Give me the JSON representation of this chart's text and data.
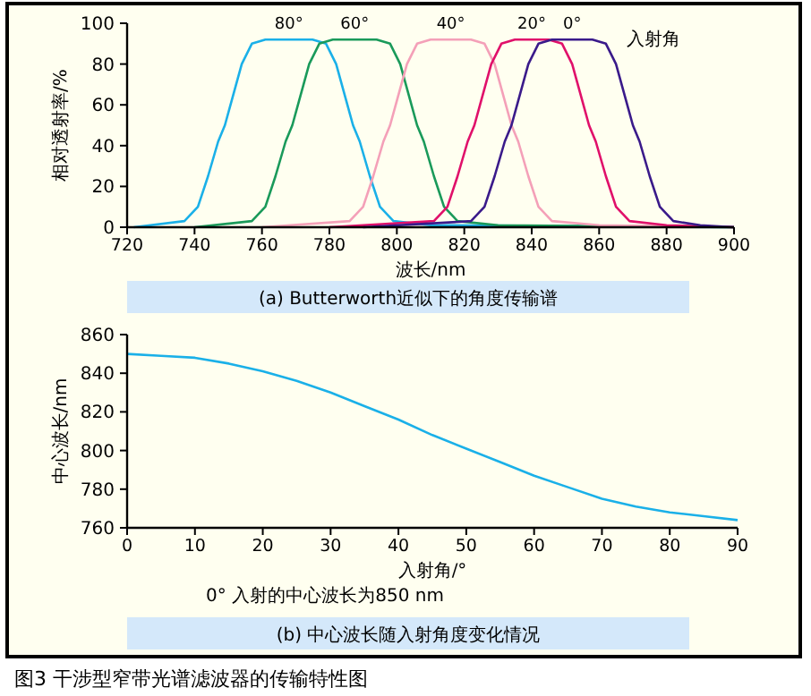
{
  "chart_data": [
    {
      "type": "line",
      "title": "(a) Butterworth近似下的角度传输谱",
      "xlabel": "波长/nm",
      "ylabel": "相对透射率/%",
      "xlim": [
        720,
        900
      ],
      "xticks": [
        720,
        740,
        760,
        780,
        800,
        820,
        840,
        860,
        880,
        900
      ],
      "ylim": [
        0,
        100
      ],
      "yticks": [
        0,
        20,
        40,
        60,
        80,
        100
      ],
      "annotations": [
        "入射角"
      ],
      "series": [
        {
          "name": "80°",
          "color": "#1ab0e8",
          "x": [
            722,
            737,
            741,
            744,
            747,
            749,
            751,
            754,
            757,
            761,
            775,
            779,
            782,
            785,
            787,
            789,
            792,
            795,
            799,
            810,
            900
          ],
          "values": [
            0,
            3,
            10,
            25,
            42,
            50,
            62,
            80,
            90,
            92,
            92,
            90,
            80,
            62,
            50,
            42,
            25,
            10,
            3,
            1,
            0
          ]
        },
        {
          "name": "60°",
          "color": "#1a9a5a",
          "x": [
            740,
            757,
            761,
            764,
            767,
            769,
            771,
            774,
            777,
            781,
            794,
            798,
            801,
            804,
            806,
            808,
            811,
            814,
            818,
            830,
            900
          ],
          "values": [
            0,
            3,
            10,
            25,
            42,
            50,
            62,
            80,
            90,
            92,
            92,
            90,
            80,
            62,
            50,
            42,
            25,
            10,
            3,
            1,
            0
          ]
        },
        {
          "name": "40°",
          "color": "#f4a0b8",
          "x": [
            760,
            786,
            790,
            793,
            796,
            798,
            800,
            803,
            806,
            810,
            822,
            826,
            829,
            832,
            834,
            836,
            839,
            842,
            846,
            860,
            900
          ],
          "values": [
            0,
            3,
            10,
            25,
            42,
            50,
            62,
            80,
            90,
            92,
            92,
            90,
            80,
            62,
            50,
            42,
            25,
            10,
            3,
            1,
            0
          ]
        },
        {
          "name": "20°",
          "color": "#e0106a",
          "x": [
            780,
            811,
            815,
            818,
            821,
            823,
            825,
            828,
            831,
            835,
            845,
            849,
            852,
            855,
            857,
            859,
            862,
            865,
            869,
            880,
            900
          ],
          "values": [
            0,
            3,
            10,
            25,
            42,
            50,
            62,
            80,
            90,
            92,
            92,
            90,
            80,
            62,
            50,
            42,
            25,
            10,
            3,
            1,
            0
          ]
        },
        {
          "name": "0°",
          "color": "#3a1a8a",
          "x": [
            790,
            822,
            826,
            829,
            832,
            834,
            836,
            839,
            842,
            846,
            858,
            862,
            865,
            868,
            870,
            872,
            875,
            878,
            882,
            890,
            900
          ],
          "values": [
            0,
            3,
            10,
            25,
            42,
            50,
            62,
            80,
            90,
            92,
            92,
            90,
            80,
            62,
            50,
            42,
            25,
            10,
            3,
            1,
            0
          ]
        }
      ]
    },
    {
      "type": "line",
      "title": "(b) 中心波长随入射角度变化情况",
      "xlabel": "入射角/°",
      "ylabel": "中心波长/nm",
      "xlim": [
        0,
        90
      ],
      "xticks": [
        0,
        10,
        20,
        30,
        40,
        50,
        60,
        70,
        80,
        90
      ],
      "ylim": [
        760,
        860
      ],
      "yticks": [
        760,
        780,
        800,
        820,
        840,
        860
      ],
      "annotations": [
        "0°  入射的中心波长为850 nm",
        "图3  干涉型窄带光谱滤波器的传输特性图"
      ],
      "series": [
        {
          "color": "#1ab0e8",
          "x": [
            0,
            5,
            10,
            15,
            20,
            25,
            30,
            35,
            40,
            45,
            50,
            55,
            60,
            65,
            70,
            75,
            80,
            85,
            90
          ],
          "values": [
            850,
            849,
            848,
            845,
            841,
            836,
            830,
            823,
            816,
            808,
            801,
            794,
            787,
            781,
            775,
            771,
            768,
            766,
            764
          ]
        }
      ]
    }
  ]
}
